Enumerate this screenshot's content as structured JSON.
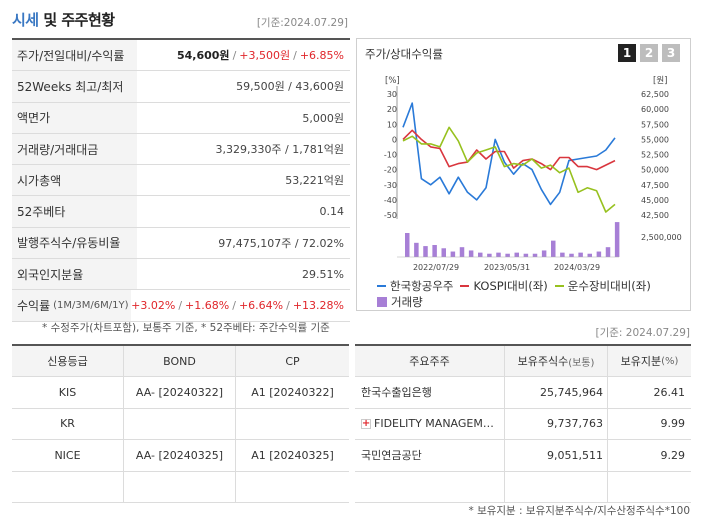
{
  "header": {
    "title_first": "시세",
    "title_rest": " 및 주주현황",
    "date": "[기준:2024.07.29]"
  },
  "stock": {
    "rows": [
      {
        "label": "주가/전일대비/수익률",
        "price": "54,600원",
        "change": "+3,500원",
        "rate": "+6.85%"
      },
      {
        "label": "52Weeks 최고/최저",
        "value": "59,500원 / 43,600원"
      },
      {
        "label": "액면가",
        "value": "5,000원"
      },
      {
        "label": "거래량/거래대금",
        "value": "3,329,330주 / 1,781억원"
      },
      {
        "label": "시가총액",
        "value": "53,221억원"
      },
      {
        "label": "52주베타",
        "value": "0.14"
      },
      {
        "label": "발행주식수/유동비율",
        "value": "97,475,107주 / 72.02%"
      },
      {
        "label": "외국인지분율",
        "value": "29.51%"
      },
      {
        "label": "수익률",
        "label_sub": "(1M/3M/6M/1Y)",
        "r1": "+3.02%",
        "r2": "+1.68%",
        "r3": "+6.64%",
        "r4": "+13.28%"
      }
    ],
    "note": "* 수정주가(차트포함), 보통주 기준, * 52주베타: 주간수익률 기준"
  },
  "chart_panel": {
    "title": "주가/상대수익률",
    "tabs": [
      "1",
      "2",
      "3"
    ],
    "active_tab": 0,
    "legend": [
      {
        "label": "한국항공우주",
        "color": "#2a7ad8"
      },
      {
        "label": "KOSPI대비(좌)",
        "color": "#d9363e"
      },
      {
        "label": "운수장비대비(좌)",
        "color": "#97c11f"
      },
      {
        "label": "거래량",
        "color": "#a77fd6"
      }
    ]
  },
  "chart_data": {
    "type": "line",
    "x_ticks": [
      "2022/07/29",
      "2023/05/31",
      "2024/03/29"
    ],
    "left_axis": {
      "unit": "[%]",
      "ticks": [
        30,
        20,
        10,
        0,
        -10,
        -20,
        -30,
        -40,
        -50
      ],
      "ylim": [
        -50,
        30
      ]
    },
    "right_axis": {
      "unit": "[원]",
      "ticks": [
        "62,500",
        "60,000",
        "57,500",
        "55,000",
        "52,500",
        "50,000",
        "47,500",
        "45,000",
        "42,500"
      ],
      "ylim": [
        42500,
        62500
      ]
    },
    "volume_axis": {
      "tick": "2,500,000"
    },
    "series": [
      {
        "name": "한국항공우주",
        "color": "#2a7ad8",
        "values": [
          8,
          24,
          -26,
          -30,
          -25,
          -36,
          -25,
          -35,
          -40,
          -32,
          0,
          -15,
          -23,
          -16,
          -20,
          -33,
          -43,
          -35,
          -14,
          -13,
          -12,
          -11,
          -7,
          1
        ]
      },
      {
        "name": "KOSPI대비(좌)",
        "color": "#d9363e",
        "values": [
          0,
          6,
          0,
          -5,
          -6,
          -18,
          -16,
          -15,
          -7,
          -13,
          -8,
          -8,
          -19,
          -14,
          -13,
          -16,
          -20,
          -12,
          -12,
          -18,
          -18,
          -20,
          -17,
          -14
        ]
      },
      {
        "name": "운수장비대비(좌)",
        "color": "#97c11f",
        "values": [
          -1,
          2,
          -3,
          -3,
          -5,
          8,
          -1,
          -15,
          -9,
          -7,
          -5,
          -18,
          -16,
          -17,
          -13,
          -19,
          -17,
          -22,
          -19,
          -35,
          -32,
          -34,
          -48,
          -43
        ]
      },
      {
        "name": "거래량",
        "color": "#a77fd6",
        "values": [
          2200000,
          1300000,
          1000000,
          1100000,
          800000,
          500000,
          900000,
          600000,
          400000,
          300000,
          400000,
          300000,
          400000,
          300000,
          300000,
          600000,
          1500000,
          400000,
          300000,
          400000,
          300000,
          500000,
          900000,
          3200000
        ]
      }
    ]
  },
  "date_bottom": "[기준: 2024.07.29]",
  "credit": {
    "headers": [
      "신용등급",
      "BOND",
      "CP"
    ],
    "rows": [
      [
        "KIS",
        "AA-  [20240322]",
        "A1  [20240322]"
      ],
      [
        "KR",
        "",
        ""
      ],
      [
        "NICE",
        "AA-  [20240325]",
        "A1  [20240325]"
      ],
      [
        "",
        "",
        ""
      ]
    ]
  },
  "holders": {
    "headers": [
      "주요주주",
      "보유주식수",
      "(보통)",
      "보유지분",
      "(%)"
    ],
    "rows": [
      {
        "name": "한국수출입은행",
        "shares": "25,745,964",
        "pct": "26.41",
        "icon": false
      },
      {
        "name": "FIDELITY MANAGEM…",
        "shares": "9,737,763",
        "pct": "9.99",
        "icon": true
      },
      {
        "name": "국민연금공단",
        "shares": "9,051,511",
        "pct": "9.29",
        "icon": false
      },
      {
        "name": "",
        "shares": "",
        "pct": "",
        "icon": false
      }
    ],
    "note": "* 보유지분 : 보유지분주식수/지수산정주식수*100"
  }
}
